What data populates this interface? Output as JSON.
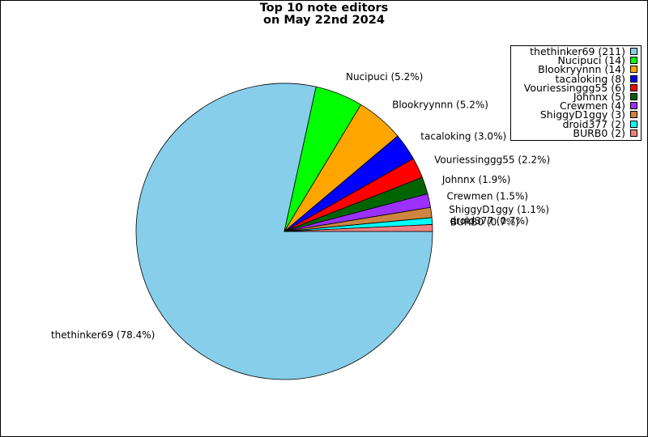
{
  "chart_data": {
    "type": "pie",
    "title_lines": [
      "Top 10 note editors",
      "on May 22nd 2024"
    ],
    "slices": [
      {
        "name": "thethinker69",
        "value": 211,
        "percent_label": "thethinker69 (78.4%)",
        "legend_label": "thethinker69 (211)",
        "color": "#87CEEB"
      },
      {
        "name": "Nucipuci",
        "value": 14,
        "percent_label": "Nucipuci (5.2%)",
        "legend_label": "Nucipuci (14)",
        "color": "#00FF00"
      },
      {
        "name": "Blookryynnn",
        "value": 14,
        "percent_label": "Blookryynnn (5.2%)",
        "legend_label": "Blookryynnn (14)",
        "color": "#FFA500"
      },
      {
        "name": "tacaloking",
        "value": 8,
        "percent_label": "tacaloking (3.0%)",
        "legend_label": "tacaloking (8)",
        "color": "#0000FF"
      },
      {
        "name": "Vouriessinggg55",
        "value": 6,
        "percent_label": "Vouriessinggg55 (2.2%)",
        "legend_label": "Vouriessinggg55 (6)",
        "color": "#FF0000"
      },
      {
        "name": "Johnnx",
        "value": 5,
        "percent_label": "Johnnx (1.9%)",
        "legend_label": "Johnnx (5)",
        "color": "#006400"
      },
      {
        "name": "Crewmen",
        "value": 4,
        "percent_label": "Crewmen (1.5%)",
        "legend_label": "Crewmen (4)",
        "color": "#9B30FF"
      },
      {
        "name": "ShiggyD1ggy",
        "value": 3,
        "percent_label": "ShiggyD1ggy (1.1%)",
        "legend_label": "ShiggyD1ggy (3)",
        "color": "#CD853F"
      },
      {
        "name": "droid377",
        "value": 2,
        "percent_label": "droid377 (0.7%)",
        "legend_label": "droid377 (2)",
        "color": "#00FFFF"
      },
      {
        "name": "BURB0",
        "value": 2,
        "percent_label": "BURB0 (0.7%)",
        "legend_label": "BURB0 (2)",
        "color": "#F08080"
      }
    ],
    "legend_placement": "top-right",
    "start_angle": "0 degrees (3 o'clock), clockwise"
  }
}
